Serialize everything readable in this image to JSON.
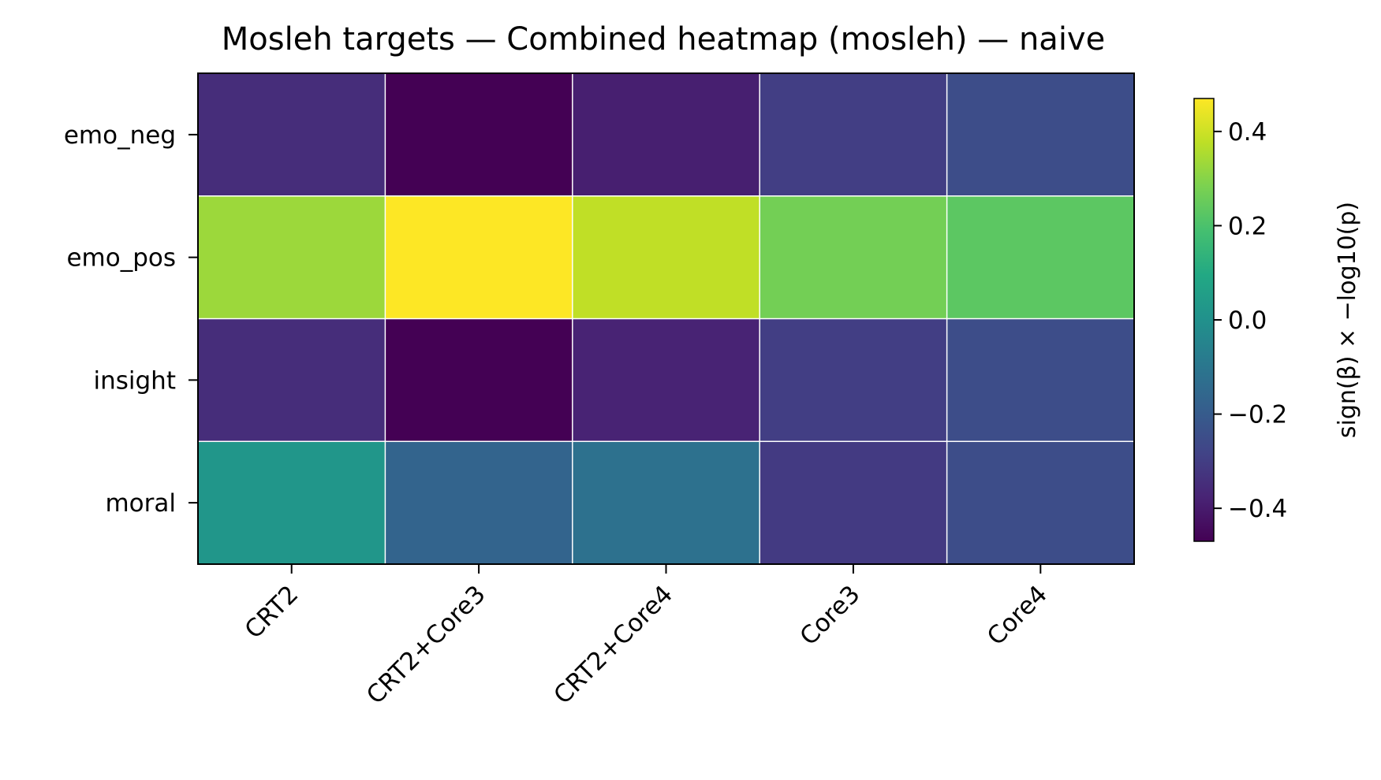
{
  "chart_data": {
    "type": "heatmap",
    "title": "Mosleh targets — Combined heatmap (mosleh) — naive",
    "x_categories": [
      "CRT2",
      "CRT2+Core3",
      "CRT2+Core4",
      "Core3",
      "Core4"
    ],
    "y_categories": [
      "emo_neg",
      "emo_pos",
      "insight",
      "moral"
    ],
    "values": [
      [
        -0.35,
        -0.47,
        -0.39,
        -0.3,
        -0.25
      ],
      [
        0.33,
        0.47,
        0.38,
        0.27,
        0.23
      ],
      [
        -0.35,
        -0.47,
        -0.38,
        -0.3,
        -0.25
      ],
      [
        0.02,
        -0.17,
        -0.12,
        -0.31,
        -0.25
      ]
    ],
    "colorbar": {
      "label": "sign(β) × −log10(p)",
      "range": [
        -0.47,
        0.47
      ],
      "ticks": [
        -0.4,
        -0.2,
        0.0,
        0.2,
        0.4
      ],
      "tick_labels": [
        "−0.4",
        "−0.2",
        "0.0",
        "0.2",
        "0.4"
      ],
      "colormap": "viridis"
    },
    "grid": true,
    "cell_border_color": "#ffffff"
  }
}
